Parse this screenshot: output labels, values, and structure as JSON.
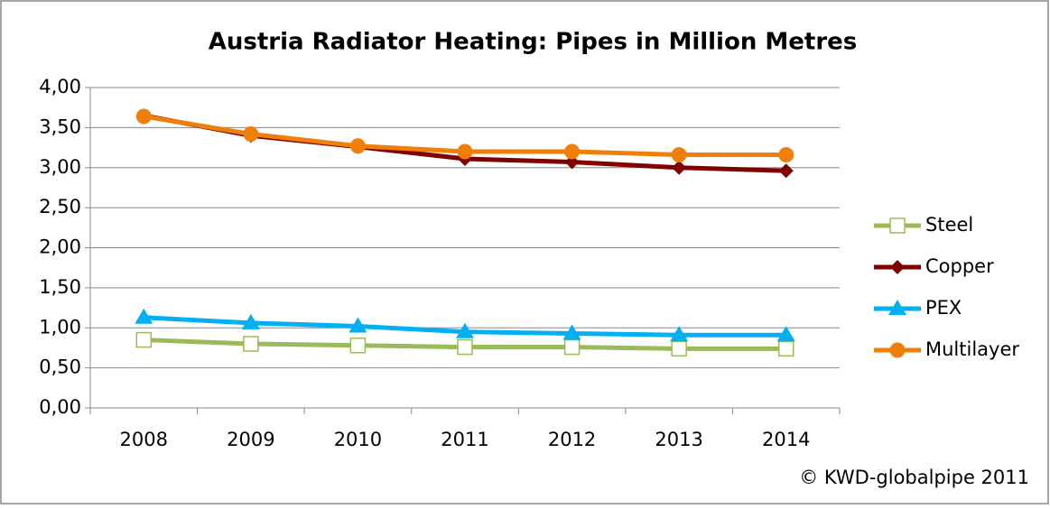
{
  "chart_data": {
    "type": "line",
    "title": "Austria Radiator Heating: Pipes in Million Metres",
    "annotation": "© KWD-globalpipe 2011",
    "categories": [
      "2008",
      "2009",
      "2010",
      "2011",
      "2012",
      "2013",
      "2014"
    ],
    "series": [
      {
        "name": "Steel",
        "color": "#9bbb59",
        "marker": "square-open",
        "values": [
          0.85,
          0.8,
          0.78,
          0.76,
          0.76,
          0.74,
          0.74
        ]
      },
      {
        "name": "Copper",
        "color": "#800000",
        "marker": "diamond",
        "values": [
          3.65,
          3.4,
          3.26,
          3.11,
          3.07,
          3.0,
          2.96
        ]
      },
      {
        "name": "PEX",
        "color": "#00b0f0",
        "marker": "triangle",
        "values": [
          1.13,
          1.06,
          1.02,
          0.95,
          0.93,
          0.91,
          0.91
        ]
      },
      {
        "name": "Multilayer",
        "color": "#f07f09",
        "marker": "circle",
        "values": [
          3.64,
          3.42,
          3.27,
          3.2,
          3.2,
          3.16,
          3.16
        ]
      }
    ],
    "ylim": [
      0,
      4
    ],
    "yticks": [
      {
        "value": 0,
        "label": "0,00"
      },
      {
        "value": 0.5,
        "label": "0,50"
      },
      {
        "value": 1,
        "label": "1,00"
      },
      {
        "value": 1.5,
        "label": "1,50"
      },
      {
        "value": 2,
        "label": "2,00"
      },
      {
        "value": 2.5,
        "label": "2,50"
      },
      {
        "value": 3,
        "label": "3,00"
      },
      {
        "value": 3.5,
        "label": "3,50"
      },
      {
        "value": 4,
        "label": "4,00"
      }
    ],
    "grid": true,
    "legend": "right"
  }
}
